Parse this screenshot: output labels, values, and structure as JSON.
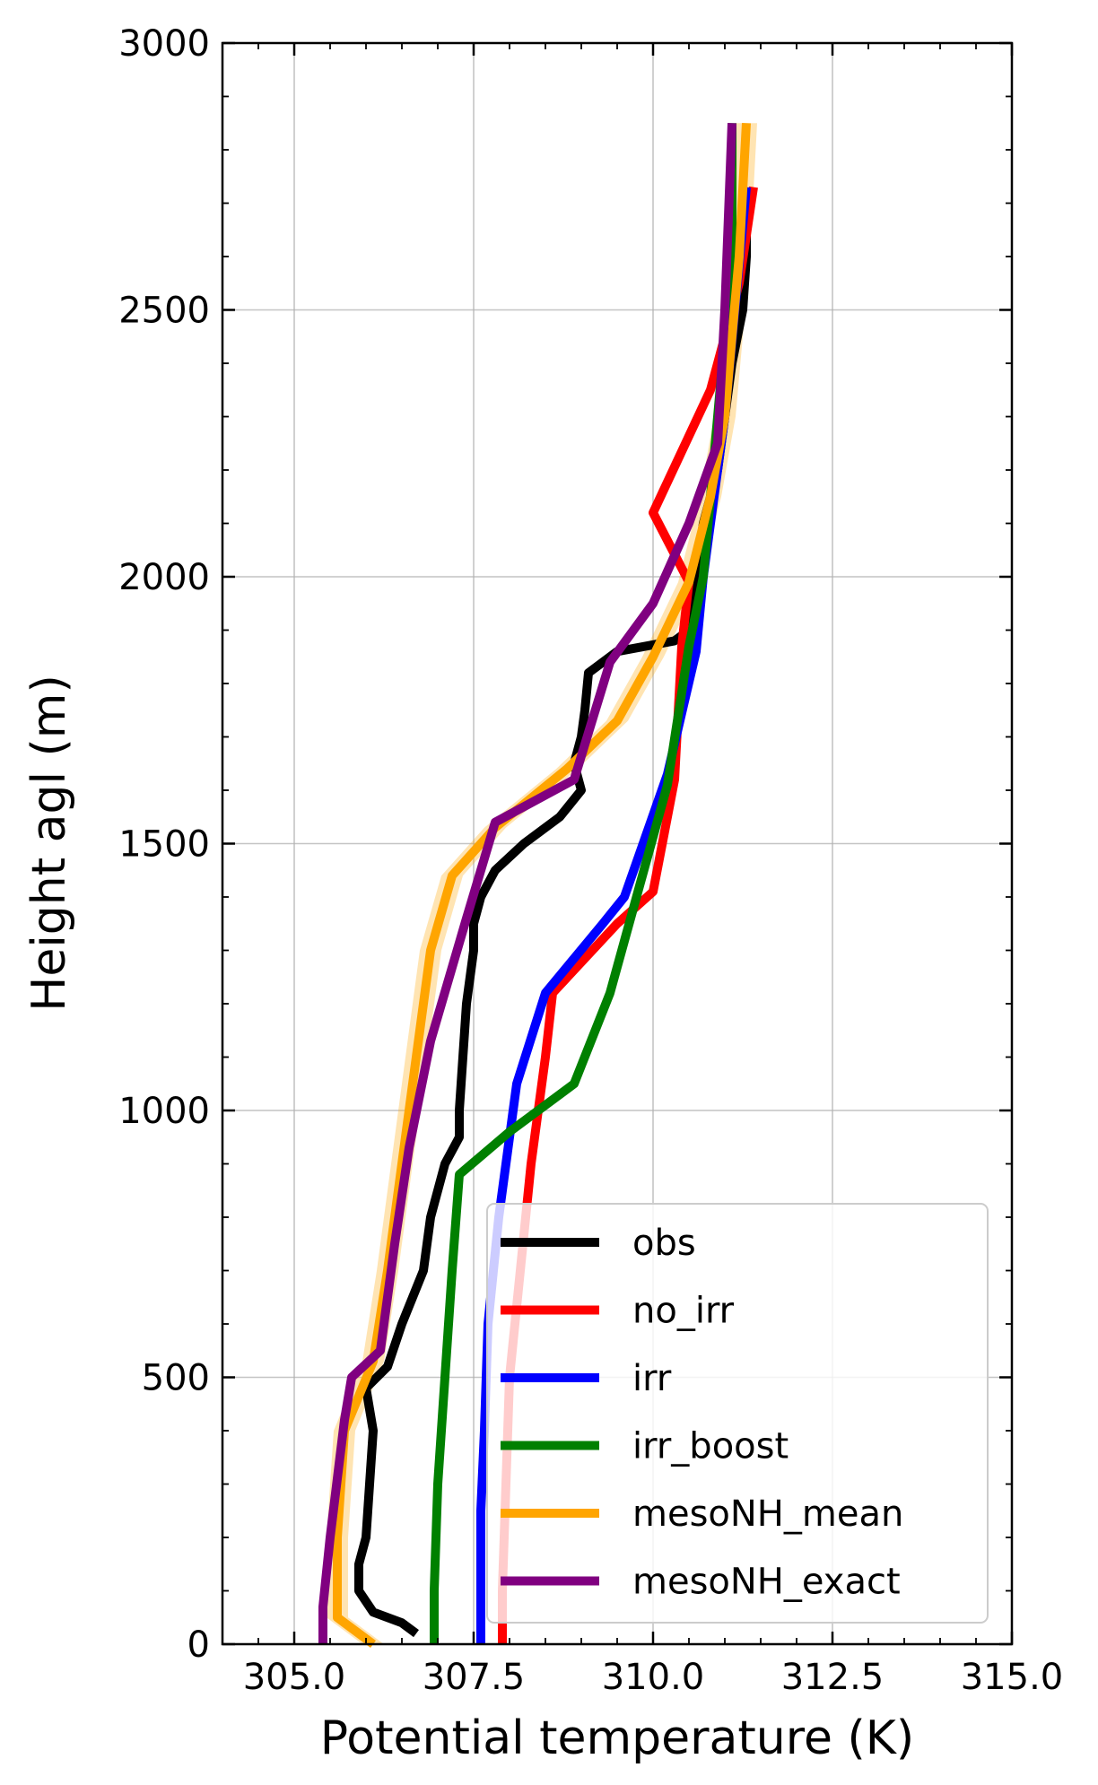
{
  "chart_data": {
    "type": "line",
    "xlabel": "Potential temperature (K)",
    "ylabel": "Height agl (m)",
    "xlim": [
      304.0,
      315.0
    ],
    "ylim": [
      0,
      3000
    ],
    "xticks": [
      "305.0",
      "307.5",
      "310.0",
      "312.5",
      "315.0"
    ],
    "xtick_values": [
      305.0,
      307.5,
      310.0,
      312.5,
      315.0
    ],
    "yticks": [
      "0",
      "500",
      "1000",
      "1500",
      "2000",
      "2500",
      "3000"
    ],
    "ytick_values": [
      0,
      500,
      1000,
      1500,
      2000,
      2500,
      3000
    ],
    "grid": true,
    "legend_position": "lower-right",
    "series": [
      {
        "name": "obs",
        "color": "#000000",
        "points": [
          [
            306.7,
            20
          ],
          [
            306.5,
            40
          ],
          [
            306.1,
            60
          ],
          [
            305.9,
            100
          ],
          [
            305.9,
            150
          ],
          [
            306.0,
            200
          ],
          [
            306.05,
            300
          ],
          [
            306.1,
            400
          ],
          [
            306.0,
            480
          ],
          [
            306.3,
            520
          ],
          [
            306.5,
            600
          ],
          [
            306.8,
            700
          ],
          [
            306.9,
            800
          ],
          [
            307.1,
            900
          ],
          [
            307.3,
            950
          ],
          [
            307.3,
            1000
          ],
          [
            307.35,
            1100
          ],
          [
            307.4,
            1200
          ],
          [
            307.5,
            1300
          ],
          [
            307.5,
            1350
          ],
          [
            307.6,
            1400
          ],
          [
            307.8,
            1450
          ],
          [
            308.2,
            1500
          ],
          [
            308.7,
            1550
          ],
          [
            309.0,
            1600
          ],
          [
            308.9,
            1650
          ],
          [
            309.0,
            1700
          ],
          [
            309.05,
            1750
          ],
          [
            309.1,
            1820
          ],
          [
            309.5,
            1860
          ],
          [
            310.3,
            1880
          ],
          [
            310.5,
            1900
          ],
          [
            310.6,
            2000
          ],
          [
            310.7,
            2100
          ],
          [
            310.9,
            2200
          ],
          [
            311.0,
            2300
          ],
          [
            311.1,
            2400
          ],
          [
            311.25,
            2500
          ],
          [
            311.3,
            2600
          ],
          [
            311.3,
            2650
          ]
        ]
      },
      {
        "name": "no_irr",
        "color": "#ff0000",
        "points": [
          [
            307.9,
            0
          ],
          [
            307.9,
            100
          ],
          [
            307.95,
            300
          ],
          [
            308.0,
            500
          ],
          [
            308.15,
            700
          ],
          [
            308.3,
            900
          ],
          [
            308.5,
            1100
          ],
          [
            308.6,
            1220
          ],
          [
            309.5,
            1350
          ],
          [
            310.0,
            1410
          ],
          [
            310.3,
            1620
          ],
          [
            310.4,
            1870
          ],
          [
            310.5,
            1990
          ],
          [
            310.0,
            2120
          ],
          [
            310.8,
            2350
          ],
          [
            311.2,
            2550
          ],
          [
            311.4,
            2730
          ]
        ]
      },
      {
        "name": "irr",
        "color": "#0000ff",
        "points": [
          [
            307.6,
            0
          ],
          [
            307.6,
            100
          ],
          [
            307.6,
            250
          ],
          [
            307.65,
            400
          ],
          [
            307.7,
            600
          ],
          [
            307.85,
            800
          ],
          [
            308.1,
            1050
          ],
          [
            308.5,
            1220
          ],
          [
            309.3,
            1350
          ],
          [
            309.6,
            1400
          ],
          [
            310.2,
            1630
          ],
          [
            310.6,
            1860
          ],
          [
            310.7,
            2000
          ],
          [
            311.0,
            2300
          ],
          [
            311.3,
            2730
          ]
        ]
      },
      {
        "name": "irr_boost",
        "color": "#008000",
        "points": [
          [
            306.95,
            0
          ],
          [
            306.95,
            100
          ],
          [
            307.0,
            300
          ],
          [
            307.1,
            500
          ],
          [
            307.2,
            700
          ],
          [
            307.3,
            880
          ],
          [
            308.0,
            960
          ],
          [
            308.9,
            1050
          ],
          [
            309.4,
            1220
          ],
          [
            310.2,
            1610
          ],
          [
            310.5,
            1870
          ],
          [
            310.7,
            2000
          ],
          [
            310.9,
            2300
          ],
          [
            311.1,
            2600
          ],
          [
            311.1,
            2850
          ]
        ]
      },
      {
        "name": "mesoNH_mean",
        "color": "#ffa500",
        "band_color": "#ffa500",
        "band_halfwidth": 0.15,
        "points": [
          [
            306.1,
            0
          ],
          [
            305.6,
            50
          ],
          [
            305.6,
            200
          ],
          [
            305.7,
            400
          ],
          [
            306.1,
            530
          ],
          [
            306.3,
            700
          ],
          [
            306.5,
            900
          ],
          [
            306.7,
            1100
          ],
          [
            306.9,
            1300
          ],
          [
            307.2,
            1440
          ],
          [
            307.8,
            1530
          ],
          [
            308.8,
            1640
          ],
          [
            309.5,
            1730
          ],
          [
            310.0,
            1850
          ],
          [
            310.5,
            1990
          ],
          [
            310.8,
            2150
          ],
          [
            311.0,
            2300
          ],
          [
            311.2,
            2600
          ],
          [
            311.3,
            2850
          ]
        ]
      },
      {
        "name": "mesoNH_exact",
        "color": "#800080",
        "points": [
          [
            305.4,
            0
          ],
          [
            305.4,
            70
          ],
          [
            305.5,
            200
          ],
          [
            305.7,
            420
          ],
          [
            305.8,
            500
          ],
          [
            306.2,
            550
          ],
          [
            306.4,
            750
          ],
          [
            306.6,
            930
          ],
          [
            306.9,
            1130
          ],
          [
            307.4,
            1360
          ],
          [
            307.8,
            1540
          ],
          [
            308.9,
            1620
          ],
          [
            309.4,
            1840
          ],
          [
            310.0,
            1950
          ],
          [
            310.5,
            2100
          ],
          [
            310.9,
            2250
          ],
          [
            311.0,
            2500
          ],
          [
            311.1,
            2850
          ]
        ]
      }
    ]
  }
}
